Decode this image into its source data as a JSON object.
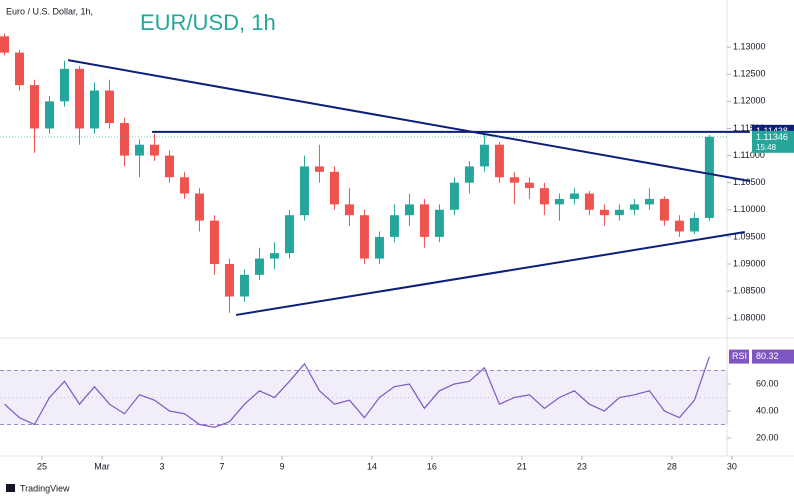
{
  "chart_data": [
    {
      "type": "candlestick",
      "subtitle": "Euro / U.S. Dollar, 1h,",
      "title": "EUR/USD, 1h",
      "x": [
        -1.25,
        -0.75,
        -0.25,
        0.25,
        0.75,
        1.25,
        1.75,
        2.25,
        2.75,
        3.25,
        3.75,
        4.25,
        4.75,
        5.25,
        5.75,
        6.25,
        6.75,
        7.25,
        7.75,
        8.25,
        8.75,
        9.25,
        9.75,
        10.25,
        10.75,
        11.25,
        11.75,
        12.25,
        12.75,
        13.25,
        13.75,
        14.25,
        14.75,
        15.25,
        15.75,
        16.25,
        16.75,
        17.25,
        17.75,
        18.25,
        18.75,
        19.25,
        19.75,
        20.25,
        20.75,
        21.25,
        21.75,
        22.25
      ],
      "open": [
        1.132,
        1.129,
        1.123,
        1.115,
        1.12,
        1.126,
        1.115,
        1.122,
        1.116,
        1.11,
        1.112,
        1.11,
        1.106,
        1.103,
        1.098,
        1.09,
        1.084,
        1.088,
        1.091,
        1.092,
        1.099,
        1.108,
        1.107,
        1.101,
        1.099,
        1.091,
        1.095,
        1.099,
        1.101,
        1.095,
        1.1,
        1.105,
        1.108,
        1.112,
        1.106,
        1.105,
        1.104,
        1.101,
        1.102,
        1.103,
        1.1,
        1.099,
        1.1,
        1.101,
        1.102,
        1.098,
        1.096,
        1.0985
      ],
      "high": [
        1.1325,
        1.1295,
        1.124,
        1.121,
        1.1275,
        1.1265,
        1.1235,
        1.124,
        1.117,
        1.113,
        1.114,
        1.111,
        1.107,
        1.104,
        1.099,
        1.091,
        1.089,
        1.093,
        1.094,
        1.1,
        1.11,
        1.112,
        1.108,
        1.104,
        1.1,
        1.096,
        1.101,
        1.103,
        1.102,
        1.101,
        1.106,
        1.109,
        1.114,
        1.1125,
        1.107,
        1.106,
        1.105,
        1.103,
        1.104,
        1.1035,
        1.101,
        1.101,
        1.102,
        1.104,
        1.1025,
        1.099,
        1.0995,
        1.1138
      ],
      "low": [
        1.1285,
        1.122,
        1.1105,
        1.114,
        1.119,
        1.112,
        1.114,
        1.115,
        1.108,
        1.106,
        1.109,
        1.105,
        1.102,
        1.096,
        1.088,
        1.081,
        1.083,
        1.087,
        1.089,
        1.091,
        1.098,
        1.105,
        1.1,
        1.097,
        1.09,
        1.09,
        1.094,
        1.097,
        1.093,
        1.094,
        1.099,
        1.103,
        1.107,
        1.105,
        1.101,
        1.102,
        1.099,
        1.098,
        1.101,
        1.099,
        1.097,
        1.098,
        1.099,
        1.1,
        1.097,
        1.095,
        1.0955,
        1.098
      ],
      "close": [
        1.129,
        1.123,
        1.115,
        1.12,
        1.126,
        1.115,
        1.122,
        1.116,
        1.11,
        1.112,
        1.11,
        1.106,
        1.103,
        1.098,
        1.09,
        1.084,
        1.088,
        1.091,
        1.092,
        1.099,
        1.108,
        1.107,
        1.101,
        1.099,
        1.091,
        1.095,
        1.099,
        1.101,
        1.095,
        1.1,
        1.105,
        1.108,
        1.112,
        1.106,
        1.105,
        1.104,
        1.101,
        1.102,
        1.103,
        1.1,
        1.099,
        1.1,
        1.101,
        1.102,
        1.098,
        1.096,
        1.0985,
        1.11346
      ],
      "up_color": "#26a69a",
      "down_color": "#ef5350",
      "countdown": "15:48",
      "xlim": [
        -1.4,
        22.87
      ],
      "ylim": [
        1.0769,
        1.1387
      ],
      "yticks": [
        {
          "value": 1.13,
          "label": "1.13000"
        },
        {
          "value": 1.125,
          "label": "1.12500"
        },
        {
          "value": 1.12,
          "label": "1.12000"
        },
        {
          "value": 1.115,
          "label": "1.11500"
        },
        {
          "value": 1.11,
          "label": "1.11000"
        },
        {
          "value": 1.105,
          "label": "1.10500"
        },
        {
          "value": 1.1,
          "label": "1.10000"
        },
        {
          "value": 1.095,
          "label": "1.09500"
        },
        {
          "value": 1.09,
          "label": "1.09000"
        },
        {
          "value": 1.085,
          "label": "1.08500"
        },
        {
          "value": 1.08,
          "label": "1.08000"
        }
      ],
      "hlines": [
        {
          "x": [
            3.67,
            23.6
          ],
          "y": 1.11438,
          "color": "#0d1f7a"
        }
      ],
      "trendlines": [
        {
          "x": [
            0.87,
            23.6
          ],
          "y": [
            1.1276,
            1.1053
          ],
          "color": "#0d1f7a"
        },
        {
          "x": [
            6.47,
            23.43
          ],
          "y": [
            1.0806,
            1.0959
          ],
          "color": "#0d1f7a"
        }
      ]
    },
    {
      "type": "line",
      "x": [
        -1.25,
        -0.75,
        -0.25,
        0.25,
        0.75,
        1.25,
        1.75,
        2.25,
        2.75,
        3.25,
        3.75,
        4.25,
        4.75,
        5.25,
        5.75,
        6.25,
        6.75,
        7.25,
        7.75,
        8.25,
        8.75,
        9.25,
        9.75,
        10.25,
        10.75,
        11.25,
        11.75,
        12.25,
        12.75,
        13.25,
        13.75,
        14.25,
        14.75,
        15.25,
        15.75,
        16.25,
        16.75,
        17.25,
        17.75,
        18.25,
        18.75,
        19.25,
        19.75,
        20.25,
        20.75,
        21.25,
        21.75,
        22.25
      ],
      "series": [
        {
          "name": "RSI",
          "color": "#7e57c2",
          "values": [
            45,
            35,
            30,
            50,
            62,
            45,
            58,
            45,
            38,
            52,
            48,
            40,
            38,
            30,
            28,
            32,
            45,
            55,
            50,
            62,
            75,
            55,
            45,
            48,
            35,
            50,
            58,
            60,
            42,
            55,
            60,
            62,
            72,
            45,
            50,
            52,
            42,
            50,
            55,
            45,
            40,
            50,
            52,
            55,
            40,
            35,
            48,
            80.32
          ]
        }
      ],
      "xlim": [
        -1.4,
        22.87
      ],
      "ylim": [
        7.4,
        92.6
      ],
      "yticks": [
        {
          "value": 60,
          "label": "60.00"
        },
        {
          "value": 40,
          "label": "40.00"
        },
        {
          "value": 20,
          "label": "20.00"
        }
      ],
      "band": [
        30,
        70
      ],
      "midline": 50,
      "xticks": [
        {
          "value": 0,
          "label": "25"
        },
        {
          "value": 2,
          "label": "Mar"
        },
        {
          "value": 4,
          "label": "3"
        },
        {
          "value": 6,
          "label": "7"
        },
        {
          "value": 8,
          "label": "9"
        },
        {
          "value": 11,
          "label": "14"
        },
        {
          "value": 13,
          "label": "16"
        },
        {
          "value": 16,
          "label": "21"
        },
        {
          "value": 18,
          "label": "23"
        },
        {
          "value": 21,
          "label": "28"
        },
        {
          "value": 23,
          "label": "30"
        }
      ]
    }
  ],
  "footer": "TradingView"
}
